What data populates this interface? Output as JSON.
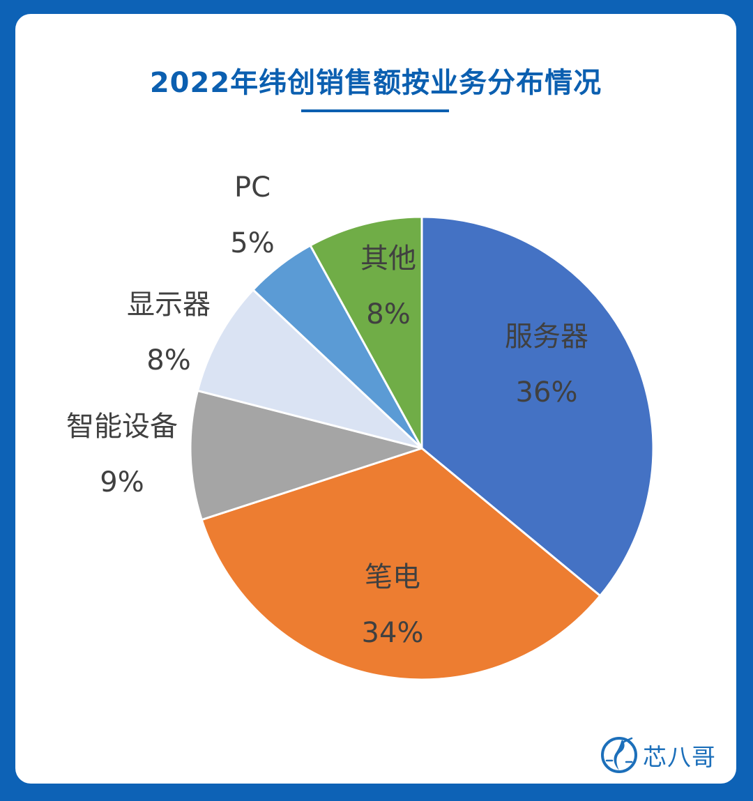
{
  "title": "2022年纬创销售额按业务分布情况",
  "brand": {
    "name": "芯八哥",
    "icon": "egret-logo-icon"
  },
  "chart_data": {
    "type": "pie",
    "title": "2022年纬创销售额按业务分布情况",
    "start_angle": "12 o'clock",
    "direction": "clockwise",
    "slices": [
      {
        "label": "服务器",
        "value": 36,
        "value_label": "36%",
        "color": "#4472c4",
        "label_placement": "inside"
      },
      {
        "label": "笔电",
        "value": 34,
        "value_label": "34%",
        "color": "#ed7d31",
        "label_placement": "inside"
      },
      {
        "label": "智能设备",
        "value": 9,
        "value_label": "9%",
        "color": "#a5a5a5",
        "label_placement": "outside"
      },
      {
        "label": "显示器",
        "value": 8,
        "value_label": "8%",
        "color": "#dae3f3",
        "label_placement": "outside"
      },
      {
        "label": "PC",
        "value": 5,
        "value_label": "5%",
        "color": "#5b9bd5",
        "label_placement": "outside"
      },
      {
        "label": "其他",
        "value": 8,
        "value_label": "8%",
        "color": "#70ad47",
        "label_placement": "inside"
      }
    ]
  }
}
